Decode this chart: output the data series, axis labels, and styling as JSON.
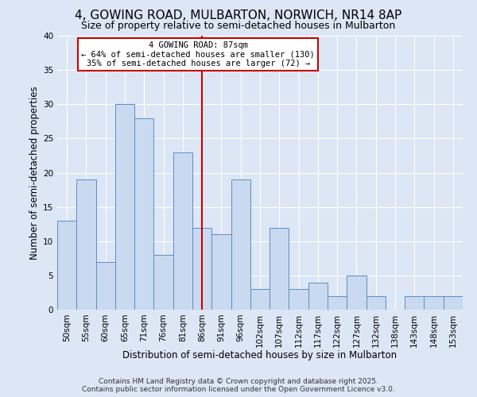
{
  "title1": "4, GOWING ROAD, MULBARTON, NORWICH, NR14 8AP",
  "title2": "Size of property relative to semi-detached houses in Mulbarton",
  "xlabel": "Distribution of semi-detached houses by size in Mulbarton",
  "ylabel": "Number of semi-detached properties",
  "categories": [
    "50sqm",
    "55sqm",
    "60sqm",
    "65sqm",
    "71sqm",
    "76sqm",
    "81sqm",
    "86sqm",
    "91sqm",
    "96sqm",
    "102sqm",
    "107sqm",
    "112sqm",
    "117sqm",
    "122sqm",
    "127sqm",
    "132sqm",
    "138sqm",
    "143sqm",
    "148sqm",
    "153sqm"
  ],
  "values": [
    13,
    19,
    7,
    30,
    28,
    8,
    23,
    12,
    11,
    19,
    3,
    12,
    3,
    4,
    2,
    5,
    2,
    0,
    2,
    2,
    2
  ],
  "bar_color": "#c9d9f0",
  "bar_edge_color": "#5a8fc4",
  "highlight_index": 7,
  "highlight_line_color": "#cc0000",
  "annotation_title": "4 GOWING ROAD: 87sqm",
  "annotation_line1": "← 64% of semi-detached houses are smaller (130)",
  "annotation_line2": "35% of semi-detached houses are larger (72) →",
  "annotation_box_color": "#ffffff",
  "annotation_box_edge": "#cc0000",
  "ylim": [
    0,
    40
  ],
  "yticks": [
    0,
    5,
    10,
    15,
    20,
    25,
    30,
    35,
    40
  ],
  "bg_color": "#dce6f5",
  "plot_bg_color": "#dce6f5",
  "footer1": "Contains HM Land Registry data © Crown copyright and database right 2025.",
  "footer2": "Contains public sector information licensed under the Open Government Licence v3.0.",
  "title1_fontsize": 11,
  "title2_fontsize": 9,
  "xlabel_fontsize": 8.5,
  "ylabel_fontsize": 8.5,
  "tick_fontsize": 7.5,
  "footer_fontsize": 6.5,
  "ann_fontsize": 7.5
}
